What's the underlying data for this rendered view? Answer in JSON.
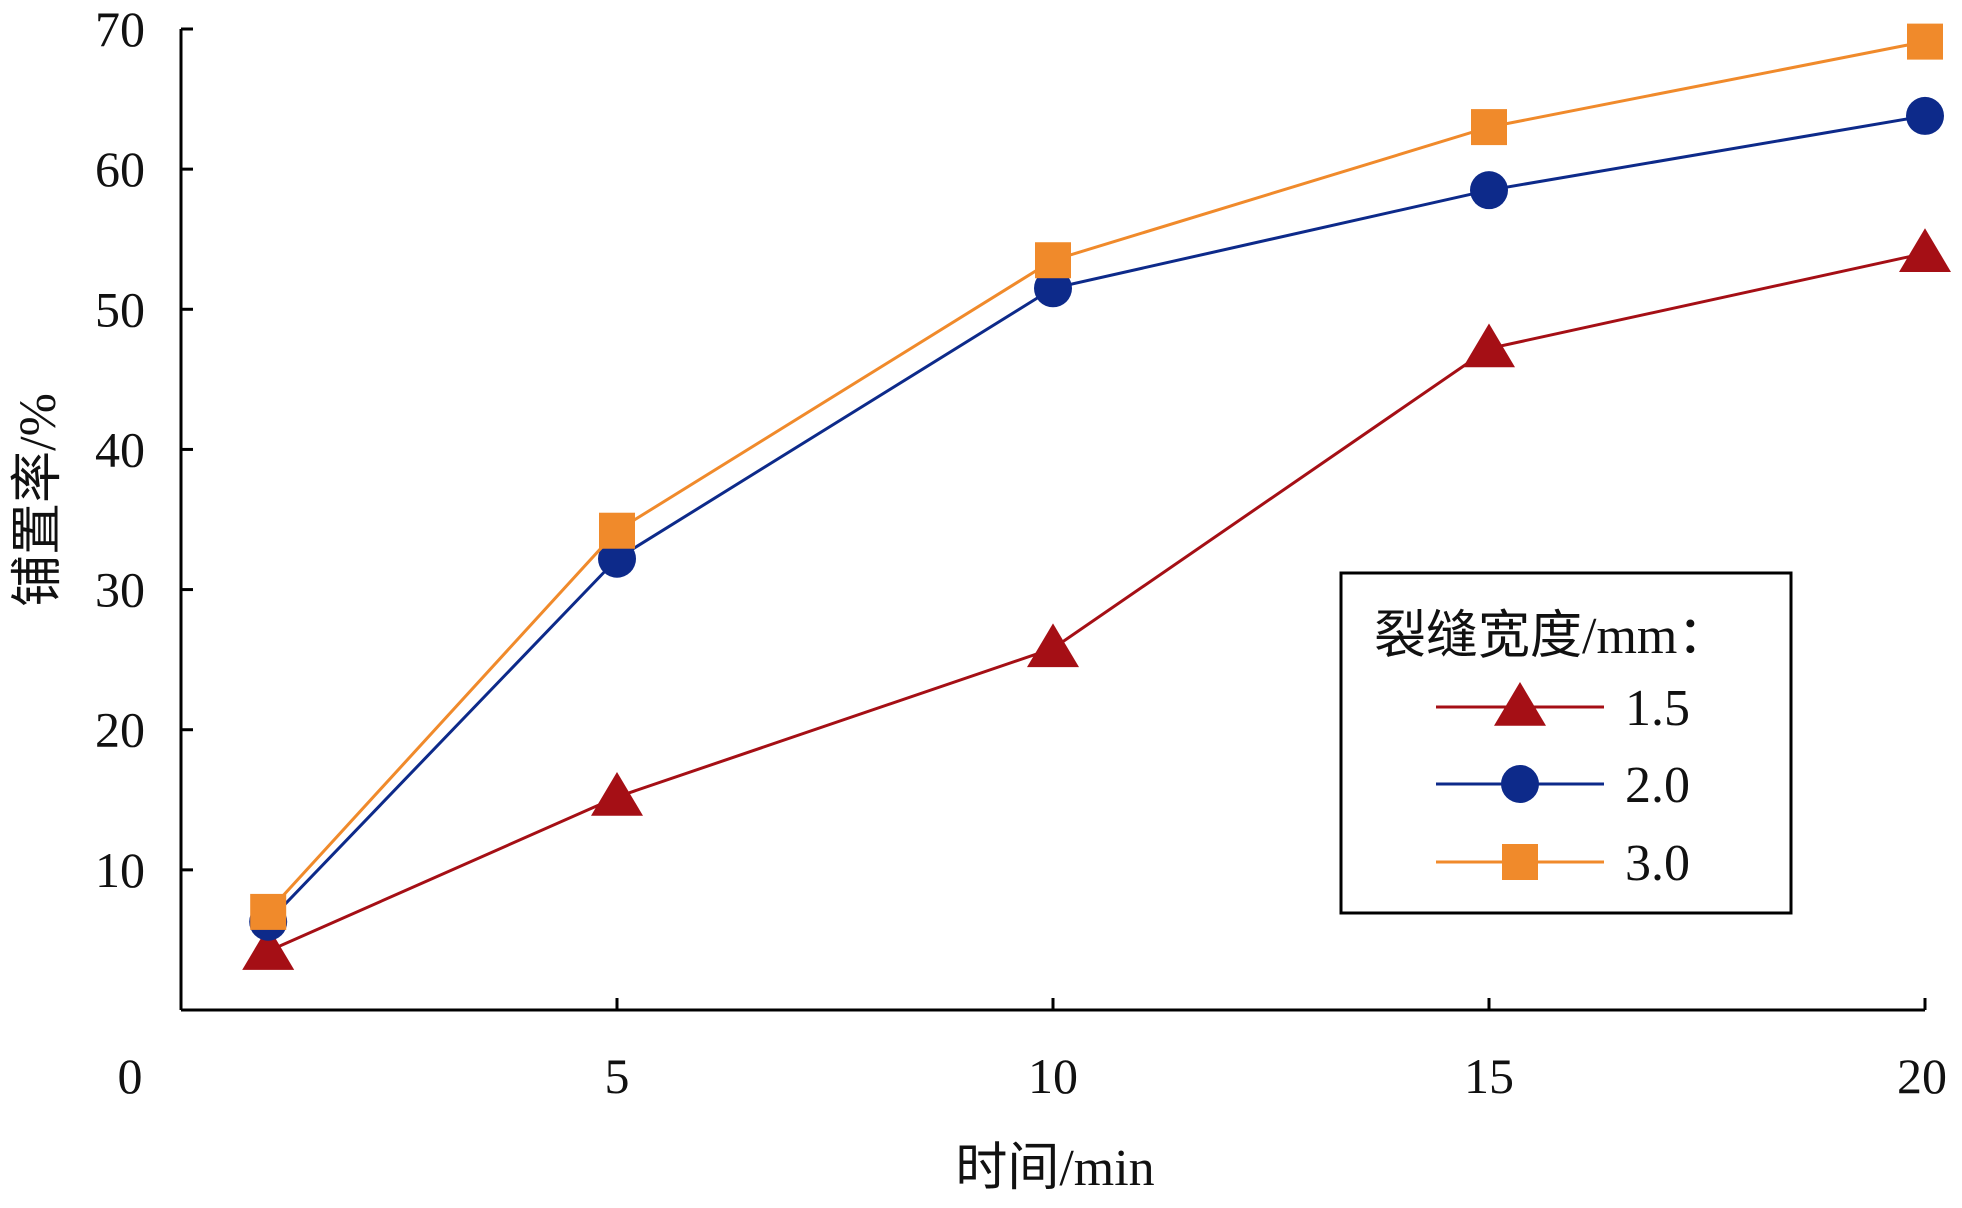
{
  "chart_data": {
    "type": "line",
    "xlabel": "时间/min",
    "ylabel": "铺置率/%",
    "xlim": [
      0,
      20
    ],
    "ylim": [
      0,
      70
    ],
    "x_ticks": [
      0,
      5,
      10,
      15,
      20
    ],
    "y_ticks": [
      10,
      20,
      30,
      40,
      50,
      60,
      70
    ],
    "x": [
      1,
      5,
      10,
      15,
      20
    ],
    "grid": false,
    "legend": {
      "title": "裂缝宽度/mm：",
      "placement": "right"
    },
    "series": [
      {
        "name": "1.5",
        "marker": "triangle",
        "color": "#A50F15",
        "values": [
          4.2,
          15.2,
          25.8,
          47.2,
          54.0
        ]
      },
      {
        "name": "2.0",
        "marker": "circle",
        "color": "#0D2A8A",
        "values": [
          6.3,
          32.2,
          51.5,
          58.5,
          63.8
        ]
      },
      {
        "name": "3.0",
        "marker": "square",
        "color": "#F08A2B",
        "values": [
          7.0,
          34.2,
          53.5,
          63.0,
          69.1
        ]
      }
    ]
  }
}
